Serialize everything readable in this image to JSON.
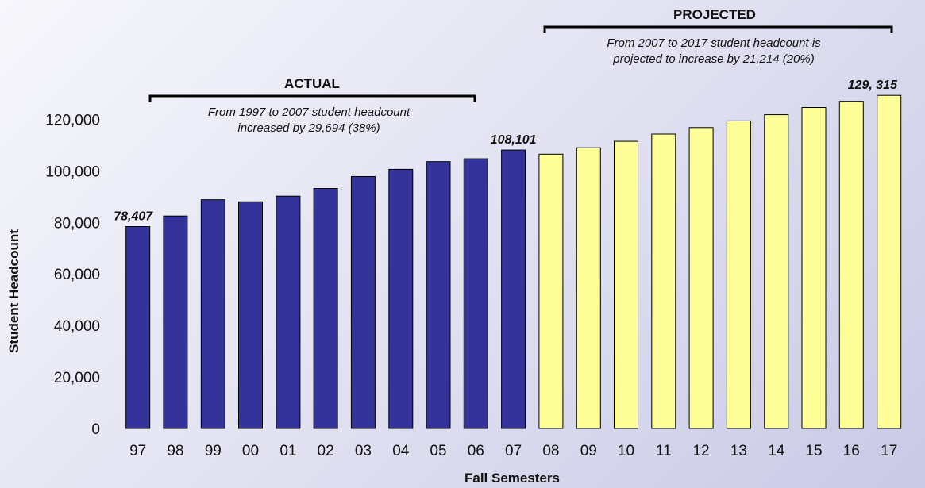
{
  "colors": {
    "actual_fill": "#333399",
    "projected_fill": "#ffff99",
    "bar_stroke": "#000000"
  },
  "chart_data": {
    "type": "bar",
    "xlabel": "Fall Semesters",
    "ylabel": "Student Headcount",
    "ylim": [
      0,
      130000
    ],
    "yticks": [
      0,
      20000,
      40000,
      60000,
      80000,
      100000,
      120000
    ],
    "ytick_labels": [
      "0",
      "20,000",
      "40,000",
      "60,000",
      "80,000",
      "100,000",
      "120,000"
    ],
    "grid": false,
    "categories": [
      "97",
      "98",
      "99",
      "00",
      "01",
      "02",
      "03",
      "04",
      "05",
      "06",
      "07",
      "08",
      "09",
      "10",
      "11",
      "12",
      "13",
      "14",
      "15",
      "16",
      "17"
    ],
    "values": [
      78407,
      82500,
      88800,
      88000,
      90200,
      93200,
      97800,
      100600,
      103600,
      104700,
      108101,
      106500,
      109000,
      111500,
      114300,
      116800,
      119400,
      121800,
      124600,
      127000,
      129315
    ],
    "segments": [
      {
        "label": "ACTUAL",
        "note": "From 1997 to 2007 student headcount increased by 29,694 (38%)",
        "start": 0,
        "end": 10
      },
      {
        "label": "PROJECTED",
        "note": "From 2007 to 2017 student headcount is projected to increase by 21,214 (20%)",
        "start": 11,
        "end": 20
      }
    ],
    "annotations": [
      {
        "index": 0,
        "text": "78,407"
      },
      {
        "index": 10,
        "text": "108,101"
      },
      {
        "index": 20,
        "text": "129, 315"
      }
    ]
  },
  "text": {
    "actual_title": "ACTUAL",
    "actual_note_line1": "From 1997 to 2007 student headcount",
    "actual_note_line2": "increased by 29,694 (38%)",
    "projected_title": "PROJECTED",
    "projected_note_line1": "From 2007 to 2017 student headcount is",
    "projected_note_line2": "projected to increase by 21,214 (20%)"
  }
}
